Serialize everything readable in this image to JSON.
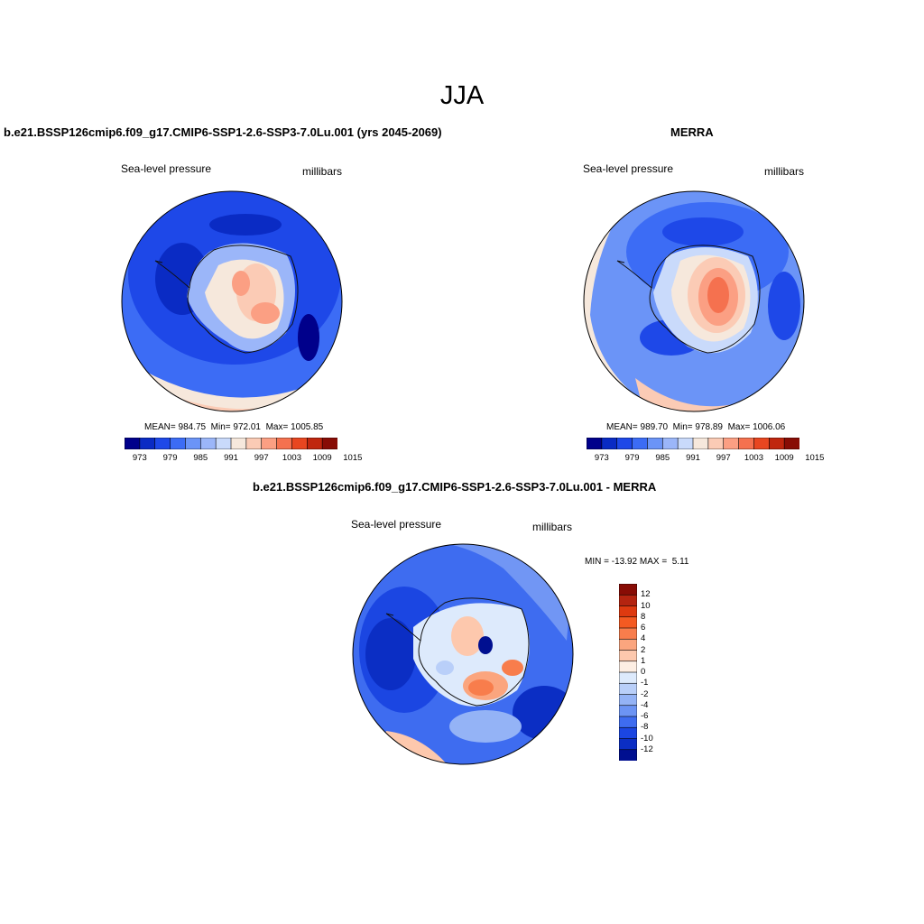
{
  "main_title": "JJA",
  "panels": [
    {
      "title": "b.e21.BSSP126cmip6.f09_g17.CMIP6-SSP1-2.6-SSP3-7.0Lu.001 (yrs 2045-2069)",
      "left_label": "Sea-level pressure",
      "right_label": "millibars",
      "stats": {
        "mean_label": "MEAN=",
        "mean": "984.75",
        "min_label": "Min=",
        "min": "972.01",
        "max_label": "Max=",
        "max": "1005.85"
      },
      "colorbar_ticks": [
        "973",
        "979",
        "985",
        "991",
        "997",
        "1003",
        "1009",
        "1015"
      ]
    },
    {
      "title": "MERRA",
      "left_label": "Sea-level pressure",
      "right_label": "millibars",
      "stats": {
        "mean_label": "MEAN=",
        "mean": "989.70",
        "min_label": "Min=",
        "min": "978.89",
        "max_label": "Max=",
        "max": "1006.06"
      },
      "colorbar_ticks": [
        "973",
        "979",
        "985",
        "991",
        "997",
        "1003",
        "1009",
        "1015"
      ]
    },
    {
      "title": "b.e21.BSSP126cmip6.f09_g17.CMIP6-SSP1-2.6-SSP3-7.0Lu.001 - MERRA",
      "left_label": "Sea-level pressure",
      "right_label": "millibars",
      "minmax": {
        "min_label": "MIN =",
        "min": "-13.92",
        "max_label": "MAX =",
        "max": "5.11"
      },
      "colorbar_ticks": [
        "12",
        "10",
        "8",
        "6",
        "4",
        "2",
        "1",
        "0",
        "-1",
        "-2",
        "-4",
        "-6",
        "-8",
        "-10",
        "-12"
      ]
    }
  ],
  "colors": {
    "abs_scale": [
      "#00008b",
      "#0a2bc4",
      "#1e48e8",
      "#3c6cf5",
      "#6b94f7",
      "#9bb6f9",
      "#c9dafb",
      "#f6e8dc",
      "#fbcbb5",
      "#fb9f83",
      "#f5714f",
      "#e84620",
      "#c0260e",
      "#880c05"
    ],
    "diff_scale": [
      "#880c05",
      "#b42410",
      "#de3a10",
      "#f45a22",
      "#f87d4c",
      "#fba57e",
      "#fdc8ad",
      "#fdeee3",
      "#ddeafc",
      "#b9cff9",
      "#94b3f6",
      "#6c94f4",
      "#3e6cf0",
      "#1b46e2",
      "#0b2ec4",
      "#000f90"
    ]
  }
}
